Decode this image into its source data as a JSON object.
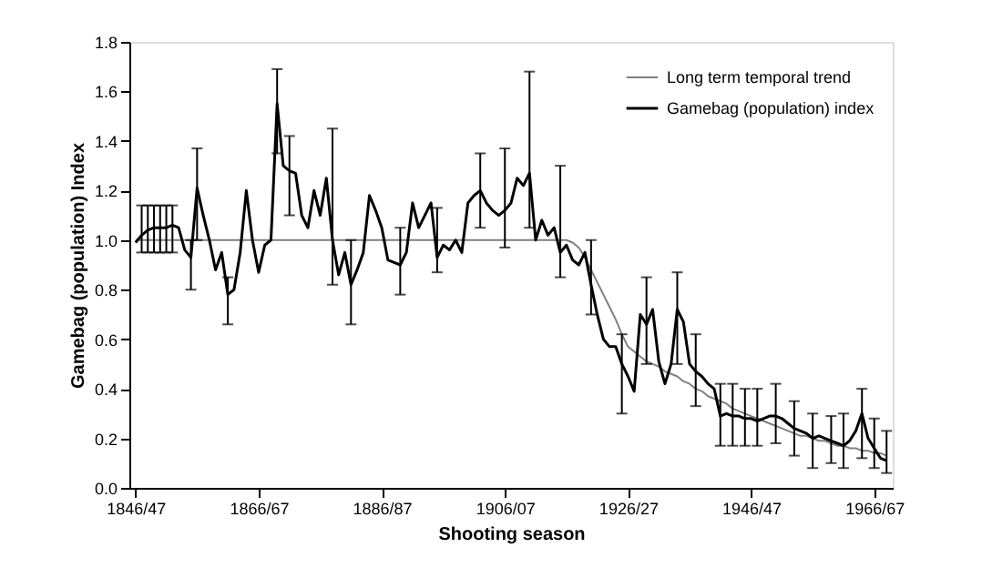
{
  "chart_data": {
    "type": "line",
    "xlabel": "Shooting season",
    "ylabel": "Gamebag (population) Index",
    "ylim": [
      0,
      1.8
    ],
    "categories": [
      "1846/47",
      null,
      null,
      null,
      null,
      null,
      null,
      null,
      null,
      null,
      null,
      null,
      null,
      null,
      null,
      null,
      null,
      null,
      null,
      null,
      "1866/67",
      null,
      null,
      null,
      null,
      null,
      null,
      null,
      null,
      null,
      null,
      null,
      null,
      null,
      null,
      null,
      null,
      null,
      null,
      null,
      "1886/87",
      null,
      null,
      null,
      null,
      null,
      null,
      null,
      null,
      null,
      null,
      null,
      null,
      null,
      null,
      null,
      null,
      null,
      null,
      null,
      "1906/07",
      null,
      null,
      null,
      null,
      null,
      null,
      null,
      null,
      null,
      null,
      null,
      null,
      null,
      null,
      null,
      null,
      null,
      null,
      null,
      "1926/27",
      null,
      null,
      null,
      null,
      null,
      null,
      null,
      null,
      null,
      null,
      null,
      null,
      null,
      null,
      null,
      null,
      null,
      null,
      null,
      "1946/47",
      null,
      null,
      null,
      null,
      null,
      null,
      null,
      null,
      null,
      null,
      null,
      null,
      null,
      null,
      null,
      null,
      null,
      null,
      null,
      "1966/67",
      null,
      null
    ],
    "yticks": [
      {
        "value": 0,
        "label": "0.0"
      },
      {
        "value": 0.2,
        "label": "0.2"
      },
      {
        "value": 0.4,
        "label": "0.4"
      },
      {
        "value": 0.6,
        "label": "0.6"
      },
      {
        "value": 0.8,
        "label": "0.8"
      },
      {
        "value": 1,
        "label": "1.0"
      },
      {
        "value": 1.2,
        "label": "1.2"
      },
      {
        "value": 1.4,
        "label": "1.4"
      },
      {
        "value": 1.6,
        "label": "1.6"
      },
      {
        "value": 1.8,
        "label": "1.8"
      }
    ],
    "grid": false,
    "legend": "top right",
    "marker": "none",
    "line_style": "solid",
    "series": [
      {
        "name": "Long term temporal trend",
        "color": "#808080",
        "values": [
          1.0,
          1.0,
          1.0,
          1.0,
          1.0,
          1.0,
          1.0,
          1.0,
          1.0,
          1.0,
          1.0,
          1.0,
          1.0,
          1.0,
          1.0,
          1.0,
          1.0,
          1.0,
          1.0,
          1.0,
          1.0,
          1.0,
          1.0,
          1.0,
          1.0,
          1.0,
          1.0,
          1.0,
          1.0,
          1.0,
          1.0,
          1.0,
          1.0,
          1.0,
          1.0,
          1.0,
          1.0,
          1.0,
          1.0,
          1.0,
          1.0,
          1.0,
          1.0,
          1.0,
          1.0,
          1.0,
          1.0,
          1.0,
          1.0,
          1.0,
          1.0,
          1.0,
          1.0,
          1.0,
          1.0,
          1.0,
          1.0,
          1.0,
          1.0,
          1.0,
          1.0,
          1.0,
          1.0,
          1.0,
          1.0,
          1.0,
          1.0,
          1.0,
          1.0,
          1.0,
          1.0,
          0.99,
          0.97,
          0.93,
          0.88,
          0.83,
          0.78,
          0.73,
          0.68,
          0.62,
          0.57,
          0.55,
          0.53,
          0.51,
          0.5,
          0.49,
          0.47,
          0.46,
          0.45,
          0.43,
          0.42,
          0.4,
          0.39,
          0.37,
          0.36,
          0.35,
          0.34,
          0.32,
          0.31,
          0.3,
          0.29,
          0.28,
          0.27,
          0.26,
          0.25,
          0.24,
          0.23,
          0.22,
          0.21,
          0.21,
          0.2,
          0.19,
          0.19,
          0.18,
          0.17,
          0.17,
          0.16,
          0.16,
          0.15,
          0.15,
          0.14,
          0.14,
          0.13
        ]
      },
      {
        "name": "Gamebag (population) index",
        "color": "#000000",
        "values": [
          0.99,
          1.02,
          1.04,
          1.05,
          1.05,
          1.05,
          1.06,
          1.05,
          0.96,
          0.93,
          1.21,
          1.1,
          1.0,
          0.88,
          0.95,
          0.78,
          0.8,
          0.95,
          1.2,
          1.0,
          0.87,
          0.98,
          1.0,
          1.55,
          1.3,
          1.28,
          1.27,
          1.1,
          1.05,
          1.2,
          1.1,
          1.25,
          1.0,
          0.86,
          0.95,
          0.82,
          0.88,
          0.95,
          1.18,
          1.12,
          1.05,
          0.92,
          0.91,
          0.9,
          0.95,
          1.15,
          1.05,
          1.1,
          1.15,
          0.93,
          0.98,
          0.96,
          1.0,
          0.95,
          1.15,
          1.18,
          1.2,
          1.15,
          1.12,
          1.1,
          1.12,
          1.15,
          1.25,
          1.22,
          1.27,
          1.0,
          1.08,
          1.02,
          1.05,
          0.95,
          0.98,
          0.92,
          0.9,
          0.95,
          0.82,
          0.7,
          0.6,
          0.57,
          0.57,
          0.5,
          0.45,
          0.39,
          0.7,
          0.66,
          0.72,
          0.51,
          0.42,
          0.5,
          0.72,
          0.67,
          0.5,
          0.47,
          0.45,
          0.42,
          0.4,
          0.29,
          0.3,
          0.29,
          0.29,
          0.28,
          0.28,
          0.27,
          0.28,
          0.29,
          0.29,
          0.28,
          0.26,
          0.24,
          0.23,
          0.22,
          0.2,
          0.21,
          0.2,
          0.19,
          0.18,
          0.17,
          0.19,
          0.23,
          0.3,
          0.2,
          0.16,
          0.12,
          0.11
        ],
        "errors": [
          null,
          [
            0.95,
            1.14
          ],
          [
            0.95,
            1.14
          ],
          [
            0.95,
            1.14
          ],
          [
            0.95,
            1.14
          ],
          [
            0.95,
            1.14
          ],
          [
            0.95,
            1.14
          ],
          null,
          null,
          [
            0.8,
            1.0
          ],
          [
            1.0,
            1.37
          ],
          null,
          null,
          null,
          null,
          [
            0.66,
            0.85
          ],
          null,
          null,
          null,
          null,
          null,
          null,
          null,
          [
            1.35,
            1.69
          ],
          null,
          [
            1.1,
            1.42
          ],
          null,
          null,
          null,
          null,
          null,
          null,
          [
            0.82,
            1.45
          ],
          null,
          null,
          [
            0.66,
            1.0
          ],
          null,
          null,
          null,
          null,
          null,
          null,
          null,
          [
            0.78,
            1.05
          ],
          null,
          null,
          null,
          null,
          null,
          [
            0.87,
            1.13
          ],
          null,
          null,
          null,
          null,
          null,
          null,
          [
            1.05,
            1.35
          ],
          null,
          null,
          null,
          [
            0.97,
            1.37
          ],
          null,
          null,
          null,
          [
            1.05,
            1.68
          ],
          null,
          null,
          null,
          null,
          [
            0.85,
            1.3
          ],
          null,
          null,
          null,
          null,
          [
            0.7,
            1.0
          ],
          null,
          null,
          null,
          null,
          [
            0.3,
            0.62
          ],
          null,
          null,
          null,
          [
            0.5,
            0.85
          ],
          null,
          null,
          null,
          null,
          [
            0.5,
            0.87
          ],
          null,
          null,
          [
            0.33,
            0.62
          ],
          null,
          null,
          null,
          [
            0.17,
            0.42
          ],
          null,
          [
            0.17,
            0.42
          ],
          null,
          [
            0.17,
            0.4
          ],
          null,
          [
            0.17,
            0.4
          ],
          null,
          null,
          [
            0.18,
            0.42
          ],
          null,
          null,
          [
            0.13,
            0.35
          ],
          null,
          null,
          [
            0.08,
            0.3
          ],
          null,
          null,
          [
            0.1,
            0.29
          ],
          null,
          [
            0.08,
            0.3
          ],
          null,
          null,
          [
            0.12,
            0.4
          ],
          null,
          [
            0.08,
            0.28
          ],
          null,
          [
            0.06,
            0.23
          ]
        ]
      }
    ]
  }
}
